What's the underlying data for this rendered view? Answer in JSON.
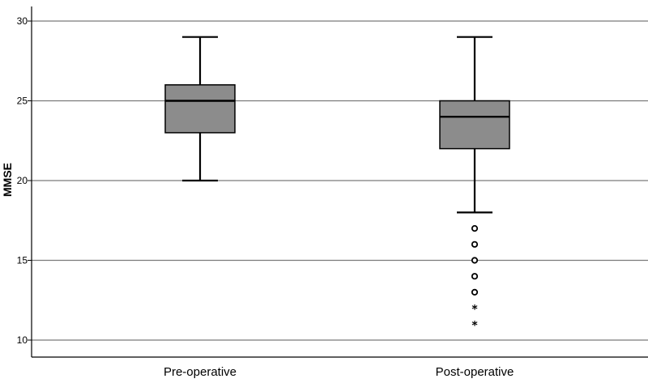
{
  "chart_data": {
    "type": "boxplot",
    "ylabel": "MMSE",
    "ylim": [
      9.5,
      31
    ],
    "yticks": [
      10,
      15,
      20,
      25,
      30
    ],
    "grid": true,
    "categories": [
      "Pre-operative",
      "Post-operative"
    ],
    "boxes": [
      {
        "category": "Pre-operative",
        "whisker_low": 20,
        "q1": 23,
        "median": 25,
        "q3": 26,
        "whisker_high": 29,
        "outliers": [],
        "extremes": []
      },
      {
        "category": "Post-operative",
        "whisker_low": 18,
        "q1": 22,
        "median": 24,
        "q3": 25,
        "whisker_high": 29,
        "outliers": [
          17,
          16,
          15,
          14,
          13
        ],
        "extremes": [
          12,
          11
        ]
      }
    ],
    "colors": {
      "box_fill": "#8c8c8c",
      "grid": "#7a7a7a",
      "stroke": "#000000"
    }
  }
}
